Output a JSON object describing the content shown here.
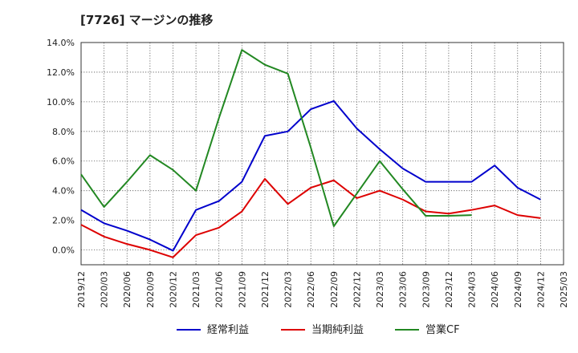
{
  "chart_data": {
    "type": "line",
    "title": "[7726]  マージンの推移",
    "xlabel": "",
    "ylabel": "",
    "ylim": [
      -1.0,
      14.0
    ],
    "yticks": [
      "14.0%",
      "12.0%",
      "10.0%",
      "8.0%",
      "6.0%",
      "4.0%",
      "2.0%",
      "0.0%"
    ],
    "ytick_values": [
      14,
      12,
      10,
      8,
      6,
      4,
      2,
      0
    ],
    "grid": true,
    "legend_position": "bottom",
    "categories": [
      "2019/12",
      "2020/03",
      "2020/06",
      "2020/09",
      "2020/12",
      "2021/03",
      "2021/06",
      "2021/09",
      "2021/12",
      "2022/03",
      "2022/06",
      "2022/09",
      "2022/12",
      "2023/03",
      "2023/06",
      "2023/09",
      "2023/12",
      "2024/03",
      "2024/06",
      "2024/09",
      "2024/12",
      "2025/03"
    ],
    "series": [
      {
        "name": "経常利益",
        "color": "#0000cc",
        "values": [
          2.7,
          1.8,
          1.3,
          0.7,
          -0.05,
          2.7,
          3.3,
          4.6,
          7.7,
          8.0,
          9.5,
          10.05,
          8.2,
          6.8,
          5.5,
          4.6,
          4.6,
          4.6,
          5.7,
          4.2,
          3.4,
          null
        ]
      },
      {
        "name": "当期純利益",
        "color": "#dd0000",
        "values": [
          1.7,
          0.9,
          0.4,
          0.0,
          -0.5,
          1.0,
          1.5,
          2.6,
          4.8,
          3.1,
          4.2,
          4.7,
          3.5,
          4.0,
          3.4,
          2.6,
          2.45,
          2.7,
          3.0,
          2.35,
          2.15,
          null
        ]
      },
      {
        "name": "営業CF",
        "color": "#228822",
        "values": [
          5.1,
          2.9,
          4.6,
          6.4,
          5.4,
          4.0,
          8.9,
          13.5,
          12.5,
          11.9,
          6.9,
          1.6,
          3.8,
          6.0,
          4.1,
          2.3,
          2.3,
          2.35,
          null,
          null,
          null,
          null
        ]
      }
    ]
  }
}
